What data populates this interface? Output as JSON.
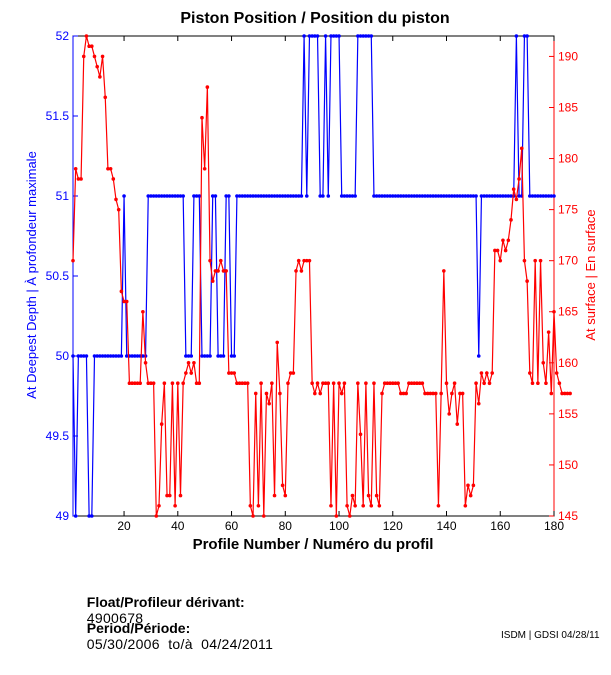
{
  "chart_data": {
    "type": "line",
    "title": "Piston Position / Position du piston",
    "xlabel": "Profile Number / Numéro du profil",
    "ylabel_left": "At Deepest Depth | À profondeur maximale",
    "ylabel_right": "At surface | En surface",
    "xlim": [
      1,
      180
    ],
    "ylim_left": [
      49,
      52
    ],
    "ylim_right": [
      145,
      192
    ],
    "x_ticks": [
      20,
      40,
      60,
      80,
      100,
      120,
      140,
      160,
      180
    ],
    "y_ticks_left": [
      "49",
      "49.5",
      "50",
      "50.5",
      "51",
      "51.5",
      "52"
    ],
    "y_ticks_left_values": [
      49,
      49.5,
      50,
      50.5,
      51,
      51.5,
      52
    ],
    "y_ticks_right": [
      "145",
      "150",
      "155",
      "160",
      "165",
      "170",
      "175",
      "180",
      "185",
      "190"
    ],
    "y_ticks_right_values": [
      145,
      150,
      155,
      160,
      165,
      170,
      175,
      180,
      185,
      190
    ],
    "series": [
      {
        "name": "At Deepest Depth",
        "axis": "left",
        "color": "#0000ff",
        "values": [
          50,
          49,
          50,
          50,
          50,
          50,
          49,
          49,
          50,
          50,
          50,
          50,
          50,
          50,
          50,
          50,
          50,
          50,
          50,
          51,
          50,
          50,
          50,
          50,
          50,
          50,
          50,
          50,
          51,
          51,
          51,
          51,
          51,
          51,
          51,
          51,
          51,
          51,
          51,
          51,
          51,
          51,
          50,
          50,
          50,
          51,
          51,
          51,
          50,
          50,
          50,
          50,
          51,
          51,
          50,
          50,
          50,
          51,
          51,
          50,
          50,
          51,
          51,
          51,
          51,
          51,
          51,
          51,
          51,
          51,
          51,
          51,
          51,
          51,
          51,
          51,
          51,
          51,
          51,
          51,
          51,
          51,
          51,
          51,
          51,
          51,
          52,
          51,
          52,
          52,
          52,
          52,
          51,
          51,
          52,
          51,
          52,
          52,
          52,
          52,
          51,
          51,
          51,
          51,
          51,
          51,
          52,
          52,
          52,
          52,
          52,
          52,
          51,
          51,
          51,
          51,
          51,
          51,
          51,
          51,
          51,
          51,
          51,
          51,
          51,
          51,
          51,
          51,
          51,
          51,
          51,
          51,
          51,
          51,
          51,
          51,
          51,
          51,
          51,
          51,
          51,
          51,
          51,
          51,
          51,
          51,
          51,
          51,
          51,
          51,
          51,
          50,
          51,
          51,
          51,
          51,
          51,
          51,
          51,
          51,
          51,
          51,
          51,
          51,
          51,
          52,
          51,
          51,
          52,
          52,
          51,
          51,
          51,
          51,
          51,
          51,
          51,
          51,
          51,
          51
        ]
      },
      {
        "name": "At surface",
        "axis": "right",
        "color": "#ff0000",
        "values": [
          170,
          179,
          178,
          178,
          190,
          192,
          191,
          191,
          190,
          189,
          188,
          190,
          186,
          179,
          179,
          178,
          176,
          175,
          167,
          166,
          166,
          158,
          158,
          158,
          158,
          158,
          165,
          160,
          158,
          158,
          158,
          145,
          146,
          154,
          158,
          147,
          147,
          158,
          146,
          158,
          147,
          158,
          159,
          160,
          159,
          160,
          158,
          158,
          184,
          179,
          187,
          170,
          168,
          169,
          169,
          170,
          169,
          169,
          159,
          159,
          159,
          158,
          158,
          158,
          158,
          158,
          146,
          145,
          157,
          146,
          158,
          145,
          157,
          156,
          158,
          147,
          162,
          157,
          148,
          147,
          158,
          159,
          159,
          169,
          170,
          169,
          170,
          170,
          170,
          158,
          157,
          158,
          157,
          158,
          158,
          158,
          146,
          158,
          145,
          158,
          157,
          158,
          146,
          145,
          147,
          146,
          158,
          153,
          146,
          158,
          147,
          146,
          158,
          147,
          146,
          157,
          158,
          158,
          158,
          158,
          158,
          158,
          157,
          157,
          157,
          158,
          158,
          158,
          158,
          158,
          158,
          157,
          157,
          157,
          157,
          157,
          146,
          157,
          169,
          158,
          155,
          157,
          158,
          154,
          157,
          157,
          146,
          148,
          147,
          148,
          158,
          156,
          159,
          158,
          159,
          158,
          159,
          171,
          171,
          170,
          172,
          171,
          172,
          174,
          177,
          176,
          178,
          181,
          170,
          168,
          159,
          158,
          170,
          158,
          170,
          160,
          158,
          163,
          157,
          165,
          159,
          158,
          157,
          157,
          157,
          157
        ]
      }
    ]
  },
  "info": {
    "float_label": "Float/Profileur dérivant:",
    "float_value": "4900678",
    "period_label": "Period/Période:",
    "period_value": "05/30/2006  to/à  04/24/2011"
  },
  "credit": "ISDM | GDSI 04/28/11"
}
